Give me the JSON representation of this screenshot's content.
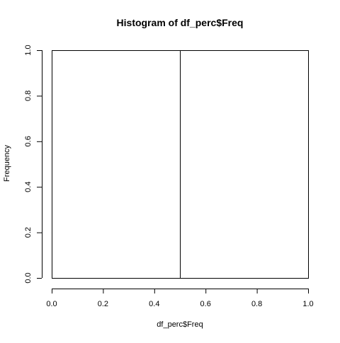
{
  "chart_data": {
    "type": "bar",
    "title": "Histogram of df_perc$Freq",
    "xlabel": "df_perc$Freq",
    "ylabel": "Frequency",
    "bins": [
      {
        "start": 0.0,
        "end": 0.5,
        "count": 1
      },
      {
        "start": 0.5,
        "end": 1.0,
        "count": 1
      }
    ],
    "xlim": [
      0,
      1
    ],
    "ylim": [
      0,
      1
    ],
    "x_ticks": [
      "0.0",
      "0.2",
      "0.4",
      "0.6",
      "0.8",
      "1.0"
    ],
    "y_ticks": [
      "0.0",
      "0.2",
      "0.4",
      "0.6",
      "0.8",
      "1.0"
    ],
    "grid": false,
    "legend": "none",
    "bar_fill": "#ffffff",
    "bar_stroke": "#000000",
    "axis_color": "#000000"
  }
}
